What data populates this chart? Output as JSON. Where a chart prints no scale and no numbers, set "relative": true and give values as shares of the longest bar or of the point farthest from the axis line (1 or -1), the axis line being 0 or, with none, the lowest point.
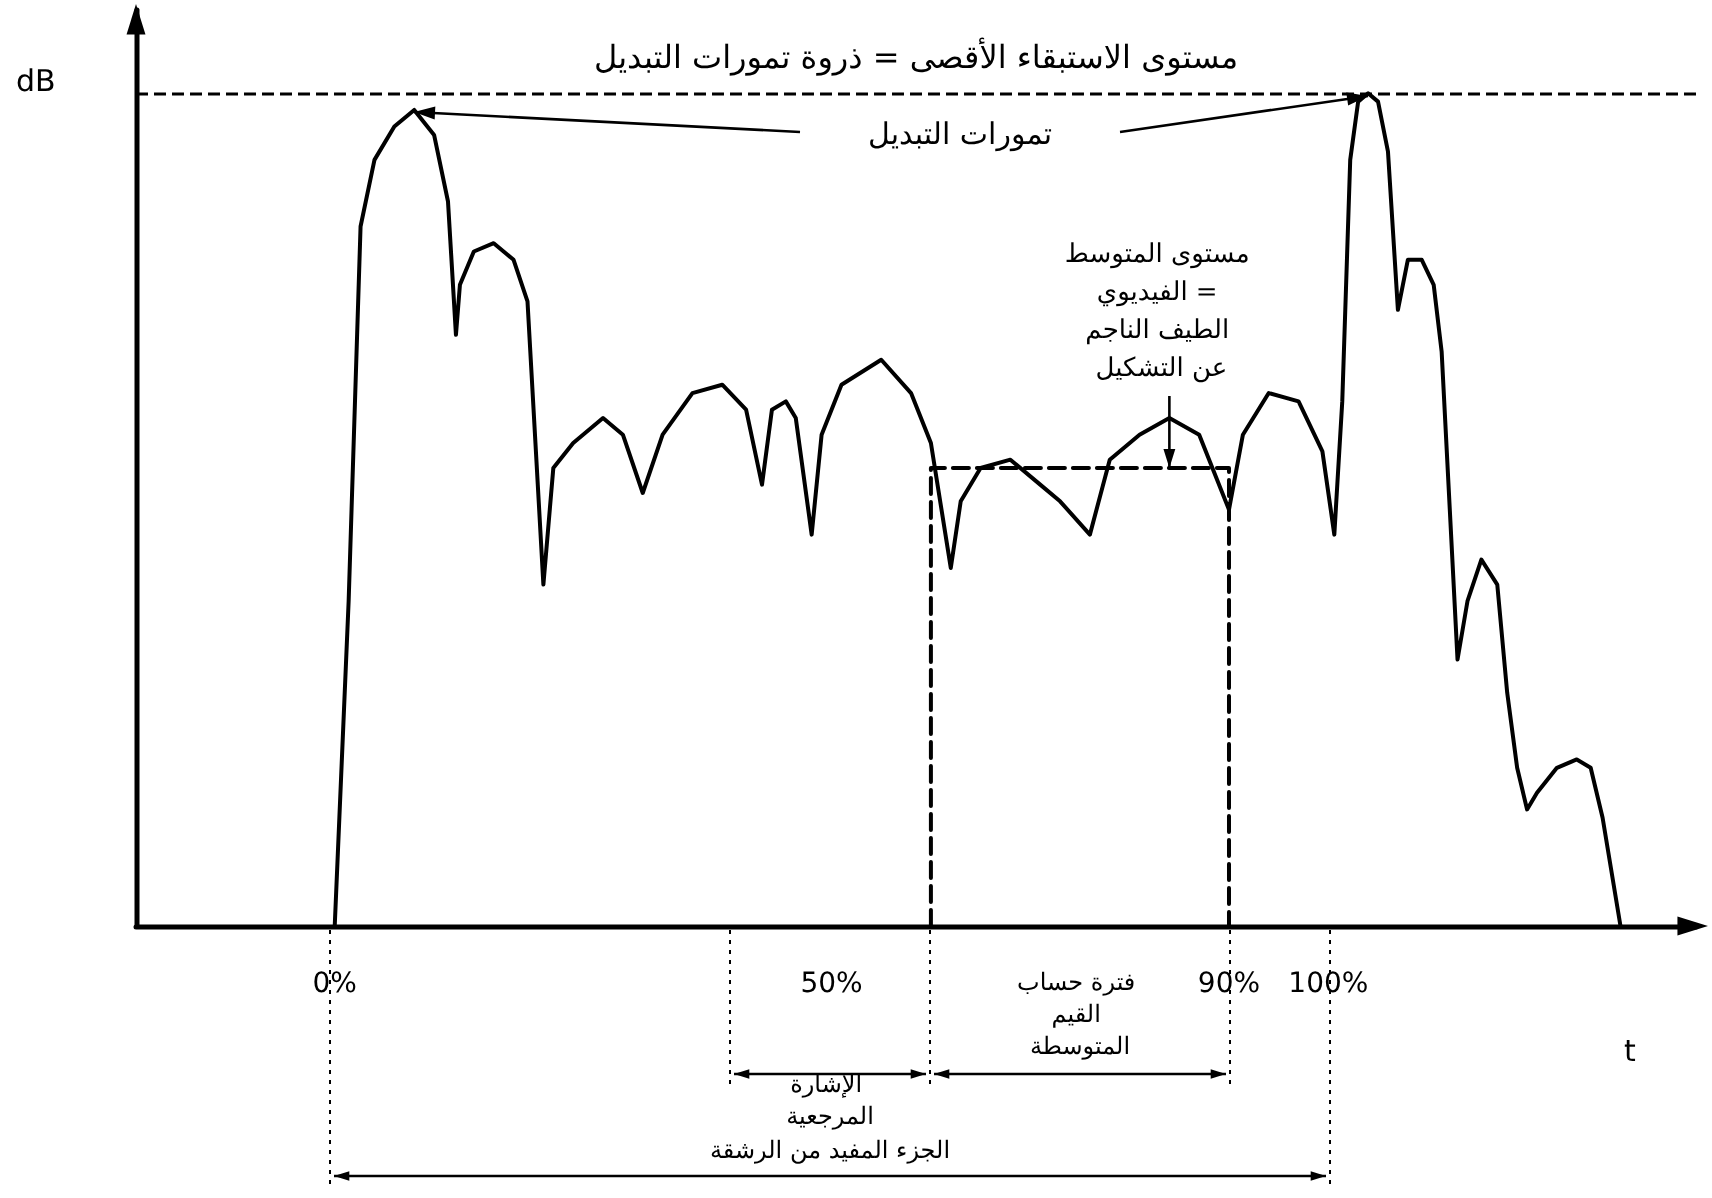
{
  "chart_data": {
    "type": "line",
    "relative": true,
    "xlabel": "t",
    "ylabel": "dB",
    "marker": "none",
    "grid": false,
    "xlim": [
      -20,
      137
    ],
    "xticks": [
      {
        "value": 0,
        "label": "0%"
      },
      {
        "value": 50,
        "label": "50%"
      },
      {
        "value": 90,
        "label": "90%"
      },
      {
        "value": 100,
        "label": "100%"
      }
    ],
    "series": [
      {
        "color": "#000000",
        "x": [
          0,
          1.4,
          2.6,
          4,
          6,
          8,
          10,
          11.4,
          12.2,
          12.6,
          14,
          16,
          18,
          19.4,
          21,
          22,
          24,
          27,
          29,
          31,
          33,
          36,
          39,
          41.4,
          43,
          44,
          45.4,
          46.4,
          48,
          49,
          51,
          55,
          58,
          60,
          62,
          63,
          65,
          68,
          71,
          73,
          76,
          78,
          81,
          84,
          87,
          90,
          91.4,
          94,
          97,
          99.4,
          100.6,
          101.4,
          102.2,
          103,
          104,
          105,
          106,
          107,
          108,
          109.4,
          110.6,
          111.4,
          113,
          114,
          115.4,
          117,
          118,
          119,
          120,
          121,
          123,
          125,
          126.4,
          127.6,
          129.4
        ],
        "values": [
          0,
          0.39,
          0.84,
          0.92,
          0.96,
          0.98,
          0.95,
          0.87,
          0.71,
          0.77,
          0.81,
          0.82,
          0.8,
          0.75,
          0.41,
          0.55,
          0.58,
          0.61,
          0.59,
          0.52,
          0.59,
          0.64,
          0.65,
          0.62,
          0.53,
          0.62,
          0.63,
          0.61,
          0.47,
          0.59,
          0.65,
          0.68,
          0.64,
          0.58,
          0.43,
          0.51,
          0.55,
          0.56,
          0.53,
          0.51,
          0.47,
          0.56,
          0.59,
          0.61,
          0.59,
          0.5,
          0.59,
          0.64,
          0.63,
          0.57,
          0.47,
          0.63,
          0.92,
          0.99,
          1,
          0.99,
          0.93,
          0.74,
          0.8,
          0.8,
          0.77,
          0.69,
          0.32,
          0.39,
          0.44,
          0.41,
          0.28,
          0.19,
          0.14,
          0.16,
          0.19,
          0.2,
          0.19,
          0.13,
          0
        ]
      },
      {
        "color": "#000000",
        "line_style": "dashed",
        "x": [
          60,
          60,
          90,
          90
        ],
        "values": [
          0,
          0.55,
          0.55,
          0
        ]
      }
    ],
    "ref_lines": [
      {
        "axis": "y",
        "value": 1,
        "label": "مستوى الاستبقاء الأقصى = ذروة تمورات التبديل",
        "line_style": "dashed",
        "color": "#000000"
      }
    ],
    "annotations": [
      "تمورات التبديل",
      {
        "text": "مستوى المتوسط الفيديوي = الطيف الناجم عن التشكيل",
        "x": 84,
        "y": 0.55
      },
      "الإشارة المرجعية",
      "فترة حساب القيم المتوسطة",
      "الجزء المفيد من الرشقة"
    ]
  }
}
